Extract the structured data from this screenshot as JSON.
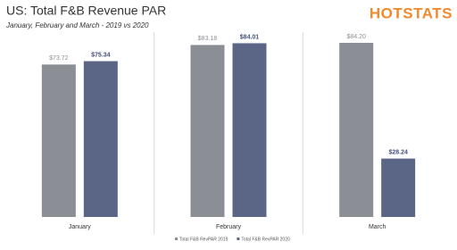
{
  "chart_data": {
    "type": "bar",
    "title": "US: Total F&B Revenue PAR",
    "subtitle": "January, February and March - 2019 vs 2020",
    "brand": "HOTSTATS",
    "categories": [
      "January",
      "February",
      "March"
    ],
    "series": [
      {
        "name": "Total F&B RevPAR 2019",
        "color": "#8b8f95",
        "values": [
          73.72,
          83.18,
          84.2
        ],
        "value_labels": [
          "$73.72",
          "$83.18",
          "$84.20"
        ]
      },
      {
        "name": "Total F&B RevPAR 2020",
        "color": "#5b6686",
        "values": [
          75.34,
          84.01,
          28.24
        ],
        "value_labels": [
          "$75.34",
          "$84.01",
          "$28.24"
        ]
      }
    ],
    "legend": "bottom"
  }
}
